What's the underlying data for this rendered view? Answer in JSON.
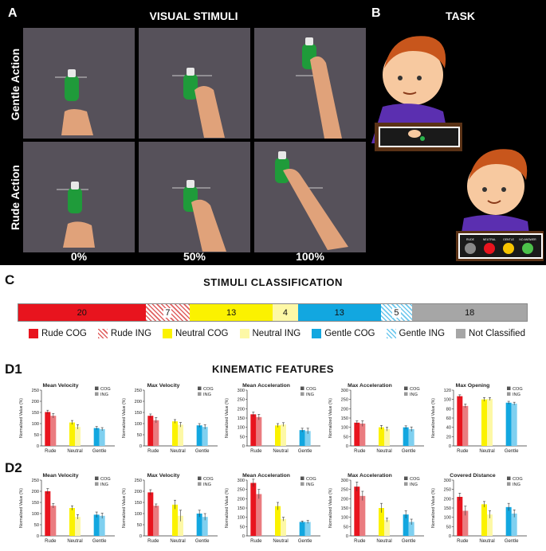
{
  "panel_a": {
    "label": "A",
    "title": "VISUAL STIMULI",
    "row_labels": [
      "Gentle Action",
      "Rude Action"
    ],
    "column_labels": [
      "0%",
      "50%",
      "100%"
    ]
  },
  "panel_b": {
    "label": "B",
    "title": "TASK",
    "button_labels": [
      "RUDE",
      "NEUTRAL",
      "GENTLE",
      "NO ANSWER"
    ]
  },
  "panel_c": {
    "label": "C",
    "title": "STIMULI CLASSIFICATION",
    "segments": [
      {
        "name": "Rude COG",
        "value": 20,
        "label": "20",
        "color": "#e8141e",
        "pattern": "solid"
      },
      {
        "name": "Rude ING",
        "value": 7,
        "label": "7",
        "color": "#e06060",
        "pattern": "hatch"
      },
      {
        "name": "Neutral COG",
        "value": 13,
        "label": "13",
        "color": "#fbf200",
        "pattern": "solid"
      },
      {
        "name": "Neutral ING",
        "value": 4,
        "label": "4",
        "color": "#fdf8a6",
        "pattern": "solid"
      },
      {
        "name": "Gentle COG",
        "value": 13,
        "label": "13",
        "color": "#12a7e0",
        "pattern": "solid"
      },
      {
        "name": "Gentle ING",
        "value": 5,
        "label": "5",
        "color": "#6cc8ee",
        "pattern": "hatch"
      },
      {
        "name": "Not Classified",
        "value": 18,
        "label": "18",
        "color": "#a6a6a6",
        "pattern": "solid"
      }
    ],
    "legend": [
      "Rude COG",
      "Rude ING",
      "Neutral COG",
      "Neutral ING",
      "Gentle COG",
      "Gentle ING",
      "Not Classified"
    ]
  },
  "kinematic_title": "KINEMATIC FEATURES",
  "row_labels": [
    "D1",
    "D2"
  ],
  "colors": {
    "rude_cog": "#e8141e",
    "rude_ing": "#ea7c80",
    "neutral_cog": "#fbf200",
    "neutral_ing": "#fdf8a6",
    "gentle_cog": "#12a7e0",
    "gentle_ing": "#7fd0f0"
  },
  "chart_data": [
    {
      "row": "D1",
      "type": "bar",
      "title": "Mean Velocity",
      "ylabel": "Normalized Value (%)",
      "categories": [
        "Rude",
        "Neutral",
        "Gentle"
      ],
      "ylim": [
        0,
        250
      ],
      "yticks": [
        "0",
        "50",
        "100",
        "150",
        "200",
        "250"
      ],
      "legend": [
        "COG",
        "ING"
      ],
      "series": [
        {
          "name": "COG",
          "values": [
            152,
            105,
            80
          ],
          "errors": [
            8,
            9,
            7
          ]
        },
        {
          "name": "ING",
          "values": [
            135,
            85,
            75
          ],
          "errors": [
            10,
            10,
            7
          ]
        }
      ]
    },
    {
      "row": "D1",
      "type": "bar",
      "title": "Max Velocity",
      "ylabel": "Normalized Value (%)",
      "categories": [
        "Rude",
        "Neutral",
        "Gentle"
      ],
      "ylim": [
        0,
        250
      ],
      "yticks": [
        "0",
        "50",
        "100",
        "150",
        "200",
        "250"
      ],
      "legend": [
        "COG",
        "ING"
      ],
      "series": [
        {
          "name": "COG",
          "values": [
            135,
            110,
            92
          ],
          "errors": [
            8,
            8,
            8
          ]
        },
        {
          "name": "ING",
          "values": [
            115,
            95,
            85
          ],
          "errors": [
            12,
            10,
            10
          ]
        }
      ]
    },
    {
      "row": "D1",
      "type": "bar",
      "title": "Mean Acceleration",
      "ylabel": "Normalized Value (%)",
      "categories": [
        "Rude",
        "Neutral",
        "Gentle"
      ],
      "ylim": [
        0,
        300
      ],
      "yticks": [
        "0",
        "50",
        "100",
        "150",
        "200",
        "250",
        "300"
      ],
      "legend": [
        "COG",
        "ING"
      ],
      "series": [
        {
          "name": "COG",
          "values": [
            170,
            110,
            85
          ],
          "errors": [
            12,
            10,
            10
          ]
        },
        {
          "name": "ING",
          "values": [
            155,
            115,
            80
          ],
          "errors": [
            15,
            10,
            15
          ]
        }
      ]
    },
    {
      "row": "D1",
      "type": "bar",
      "title": "Max Acceleration",
      "ylabel": "Normalized Value (%)",
      "categories": [
        "Rude",
        "Neutral",
        "Gentle"
      ],
      "ylim": [
        0,
        300
      ],
      "yticks": [
        "0",
        "50",
        "100",
        "150",
        "200",
        "250",
        "300"
      ],
      "legend": [
        "COG",
        "ING"
      ],
      "series": [
        {
          "name": "COG",
          "values": [
            125,
            100,
            100
          ],
          "errors": [
            10,
            10,
            8
          ]
        },
        {
          "name": "ING",
          "values": [
            120,
            90,
            90
          ],
          "errors": [
            15,
            10,
            12
          ]
        }
      ]
    },
    {
      "row": "D1",
      "type": "bar",
      "title": "Max Opening",
      "ylabel": "Normalized Value (%)",
      "categories": [
        "Rude",
        "Neutral",
        "Gentle"
      ],
      "ylim": [
        0,
        120
      ],
      "yticks": [
        "0",
        "20",
        "40",
        "60",
        "80",
        "100",
        "120"
      ],
      "legend": [
        "COG",
        "ING"
      ],
      "series": [
        {
          "name": "COG",
          "values": [
            107,
            100,
            93
          ],
          "errors": [
            3,
            4,
            3
          ]
        },
        {
          "name": "ING",
          "values": [
            86,
            101,
            91
          ],
          "errors": [
            4,
            3,
            3
          ]
        }
      ]
    },
    {
      "row": "D2",
      "type": "bar",
      "title": "Mean Velocity",
      "ylabel": "Normalized Value (%)",
      "categories": [
        "Rude",
        "Neutral",
        "Gentle"
      ],
      "ylim": [
        0,
        250
      ],
      "yticks": [
        "0",
        "50",
        "100",
        "150",
        "200",
        "250"
      ],
      "legend": [
        "COG",
        "ING"
      ],
      "series": [
        {
          "name": "COG",
          "values": [
            200,
            125,
            95
          ],
          "errors": [
            12,
            10,
            12
          ]
        },
        {
          "name": "ING",
          "values": [
            135,
            85,
            90
          ],
          "errors": [
            10,
            10,
            12
          ]
        }
      ]
    },
    {
      "row": "D2",
      "type": "bar",
      "title": "Max Velocity",
      "ylabel": "Normalized Value (%)",
      "categories": [
        "Rude",
        "Neutral",
        "Gentle"
      ],
      "ylim": [
        0,
        250
      ],
      "yticks": [
        "0",
        "50",
        "100",
        "150",
        "200",
        "250"
      ],
      "legend": [
        "COG",
        "ING"
      ],
      "series": [
        {
          "name": "COG",
          "values": [
            195,
            140,
            100
          ],
          "errors": [
            12,
            20,
            15
          ]
        },
        {
          "name": "ING",
          "values": [
            135,
            90,
            85
          ],
          "errors": [
            8,
            25,
            15
          ]
        }
      ]
    },
    {
      "row": "D2",
      "type": "bar",
      "title": "Mean Acceleration",
      "ylabel": "Normalized Value (%)",
      "categories": [
        "Rude",
        "Neutral",
        "Gentle"
      ],
      "ylim": [
        0,
        300
      ],
      "yticks": [
        "0",
        "50",
        "100",
        "150",
        "200",
        "250",
        "300"
      ],
      "legend": [
        "COG",
        "ING"
      ],
      "series": [
        {
          "name": "COG",
          "values": [
            285,
            160,
            75
          ],
          "errors": [
            20,
            20,
            5
          ]
        },
        {
          "name": "ING",
          "values": [
            225,
            90,
            75
          ],
          "errors": [
            25,
            10,
            8
          ]
        }
      ]
    },
    {
      "row": "D2",
      "type": "bar",
      "title": "Max Acceleration",
      "ylabel": "Normalized Value (%)",
      "categories": [
        "Rude",
        "Neutral",
        "Gentle"
      ],
      "ylim": [
        0,
        300
      ],
      "yticks": [
        "0",
        "50",
        "100",
        "150",
        "200",
        "250",
        "300"
      ],
      "legend": [
        "COG",
        "ING"
      ],
      "series": [
        {
          "name": "COG",
          "values": [
            265,
            150,
            115
          ],
          "errors": [
            25,
            25,
            20
          ]
        },
        {
          "name": "ING",
          "values": [
            215,
            85,
            75
          ],
          "errors": [
            25,
            10,
            15
          ]
        }
      ]
    },
    {
      "row": "D2",
      "type": "bar",
      "title": "Covered Distance",
      "ylabel": "Normalized Value (%)",
      "categories": [
        "Rude",
        "Neutral",
        "Gentle"
      ],
      "ylim": [
        0,
        300
      ],
      "yticks": [
        "0",
        "50",
        "100",
        "150",
        "200",
        "250",
        "300"
      ],
      "legend": [
        "COG",
        "ING"
      ],
      "series": [
        {
          "name": "COG",
          "values": [
            210,
            170,
            155
          ],
          "errors": [
            20,
            15,
            20
          ]
        },
        {
          "name": "ING",
          "values": [
            135,
            115,
            120
          ],
          "errors": [
            25,
            20,
            20
          ]
        }
      ]
    }
  ]
}
